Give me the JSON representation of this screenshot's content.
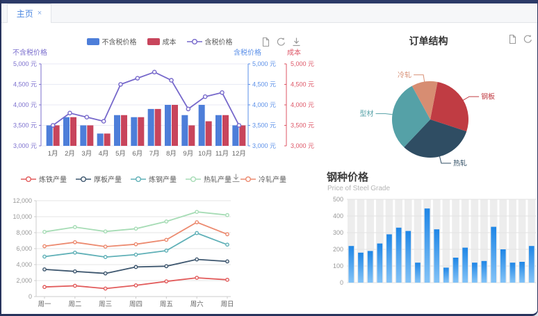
{
  "tab_bar": {
    "tabs": [
      {
        "label": "主页",
        "close": "×",
        "active": true
      }
    ]
  },
  "toolbar_icons": {
    "combo": [
      "file-icon",
      "refresh-icon",
      "download-icon"
    ],
    "pie": [
      "file-icon",
      "refresh-icon"
    ],
    "lines": [
      "download-icon"
    ]
  },
  "colors": {
    "top_strip": "#2c3a68",
    "tab_text": "#4a86e0",
    "grid_combo": "#e8eaf4",
    "grid_gray": "#e6e6e6",
    "axis_gray": "#cccccc",
    "tick_text_gray": "#999999",
    "xlabel_gray": "#666666"
  },
  "chart_data": [
    {
      "id": "price_combo",
      "type": "combo-bar-line",
      "categories": [
        "1月",
        "2月",
        "3月",
        "4月",
        "5月",
        "6月",
        "7月",
        "8月",
        "9月",
        "10月",
        "11月",
        "12月"
      ],
      "series": [
        {
          "name": "不含税价格",
          "kind": "bar",
          "color": "#4d7ed9",
          "values": [
            3500,
            3700,
            3500,
            3300,
            3750,
            3700,
            3900,
            4000,
            3750,
            4000,
            3750,
            3500
          ]
        },
        {
          "name": "成本",
          "kind": "bar",
          "color": "#c8455c",
          "values": [
            3500,
            3700,
            3500,
            3300,
            3750,
            3700,
            3900,
            4000,
            3500,
            3600,
            3750,
            3500
          ]
        },
        {
          "name": "含税价格",
          "kind": "line",
          "color": "#7668cb",
          "values": [
            3500,
            3800,
            3700,
            3600,
            4500,
            4650,
            4800,
            4600,
            3900,
            4200,
            4300,
            3500
          ]
        }
      ],
      "axes": {
        "left": {
          "title": "不含税价格",
          "color": "#7b6fce",
          "min": 3000,
          "max": 5000,
          "step": 500,
          "unit": " 元"
        },
        "tax": {
          "title": "含税价格",
          "color": "#5a8fe8",
          "min": 3000,
          "max": 5000,
          "step": 500,
          "unit": " 元"
        },
        "cost": {
          "title": "成本",
          "color": "#dd5566",
          "min": 3000,
          "max": 5000,
          "step": 500,
          "unit": " 元"
        }
      },
      "legend_position": "top-center",
      "grid": true
    },
    {
      "id": "order_pie",
      "type": "pie",
      "title": "订单结构",
      "start_angle_deg": 11,
      "slices": [
        {
          "label": "钢板",
          "value": 27,
          "color": "#c03c43"
        },
        {
          "label": "热轧",
          "value": 32,
          "color": "#2f4d63"
        },
        {
          "label": "型材",
          "value": 30,
          "color": "#55a1a7"
        },
        {
          "label": "冷轧",
          "value": 11,
          "color": "#d78d72"
        }
      ]
    },
    {
      "id": "production_lines",
      "type": "line",
      "categories": [
        "周一",
        "周二",
        "周三",
        "周四",
        "周五",
        "周六",
        "周日"
      ],
      "ylim": [
        0,
        12000
      ],
      "ystep": 2000,
      "grid": true,
      "legend_position": "top-left",
      "series": [
        {
          "name": "炼铁产量",
          "color": "#e25b5b",
          "values": [
            1200,
            1350,
            1000,
            1400,
            1900,
            2350,
            2100
          ]
        },
        {
          "name": "厚板产量",
          "color": "#3d566e",
          "values": [
            3400,
            3150,
            2900,
            3700,
            3800,
            4650,
            4400
          ]
        },
        {
          "name": "炼钢产量",
          "color": "#5fb0b7",
          "values": [
            5000,
            5500,
            4950,
            5250,
            5750,
            7950,
            6500
          ]
        },
        {
          "name": "热轧产量",
          "color": "#a6dcb5",
          "values": [
            8100,
            8700,
            8150,
            8500,
            9400,
            10600,
            10200
          ]
        },
        {
          "name": "冷轧产量",
          "color": "#ec8a6f",
          "values": [
            6300,
            6800,
            6250,
            6550,
            7100,
            9300,
            7800
          ]
        }
      ]
    },
    {
      "id": "steel_price_bars",
      "type": "bar",
      "title": "钢种价格",
      "subtitle": "Price of Steel Grade",
      "ylim": [
        0,
        500
      ],
      "ystep": 100,
      "grid": true,
      "bar_color_top": "#1f86e6",
      "bar_color_bottom": "#83c3f7",
      "band_color": "#ededed",
      "values": [
        220,
        180,
        190,
        235,
        290,
        330,
        310,
        120,
        445,
        320,
        90,
        150,
        210,
        120,
        130,
        335,
        200,
        120,
        125,
        220
      ]
    }
  ]
}
